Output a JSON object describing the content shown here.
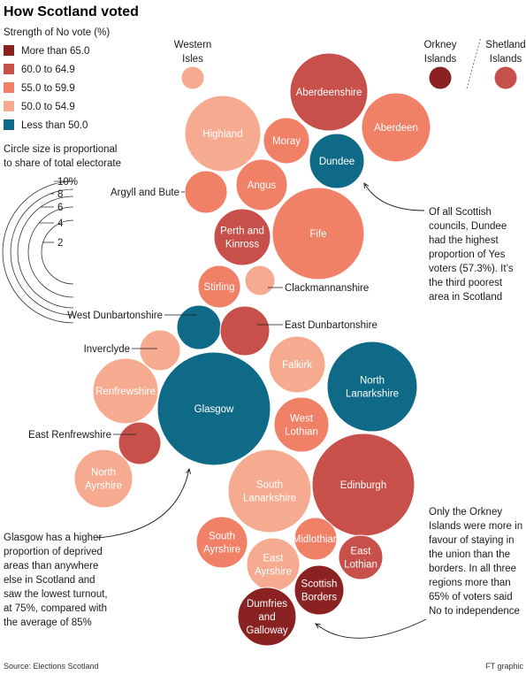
{
  "chart_data": {
    "type": "bubble",
    "title": "How Scotland voted",
    "legend": {
      "title": "Strength of No vote (%)",
      "entries": [
        {
          "label": "More than 65.0",
          "color": "#8b2222"
        },
        {
          "label": "60.0 to 64.9",
          "color": "#c8504a"
        },
        {
          "label": "55.0 to 59.9",
          "color": "#f08066"
        },
        {
          "label": "50.0 to 54.9",
          "color": "#f6ab90"
        },
        {
          "label": "Less than 50.0",
          "color": "#0f6a88"
        }
      ],
      "size_caption": [
        "Circle size is proportional",
        "to share of total electorate"
      ],
      "size_ticks": [
        "10%",
        "8",
        "6",
        "4",
        "2"
      ]
    },
    "councils": [
      {
        "name": "Western Isles",
        "band": "50.0 to 54.9",
        "label_outside": true
      },
      {
        "name": "Aberdeenshire",
        "band": "60.0 to 64.9"
      },
      {
        "name": "Orkney Islands",
        "band": "More than 65.0",
        "label_outside": true
      },
      {
        "name": "Shetland Islands",
        "band": "60.0 to 64.9",
        "label_outside": true
      },
      {
        "name": "Aberdeen",
        "band": "55.0 to 59.9"
      },
      {
        "name": "Highland",
        "band": "50.0 to 54.9"
      },
      {
        "name": "Moray",
        "band": "55.0 to 59.9"
      },
      {
        "name": "Dundee",
        "band": "Less than 50.0"
      },
      {
        "name": "Argyll and Bute",
        "band": "55.0 to 59.9",
        "label_outside": true
      },
      {
        "name": "Angus",
        "band": "55.0 to 59.9"
      },
      {
        "name": "Perth and Kinross",
        "band": "60.0 to 64.9"
      },
      {
        "name": "Fife",
        "band": "55.0 to 59.9"
      },
      {
        "name": "Stirling",
        "band": "55.0 to 59.9"
      },
      {
        "name": "Clackmannanshire",
        "band": "50.0 to 54.9",
        "label_outside": true
      },
      {
        "name": "West Dunbartonshire",
        "band": "Less than 50.0",
        "label_outside": true
      },
      {
        "name": "East Dunbartonshire",
        "band": "60.0 to 64.9",
        "label_outside": true
      },
      {
        "name": "Inverclyde",
        "band": "50.0 to 54.9",
        "label_outside": true
      },
      {
        "name": "Renfrewshire",
        "band": "50.0 to 54.9"
      },
      {
        "name": "Glasgow",
        "band": "Less than 50.0"
      },
      {
        "name": "Falkirk",
        "band": "50.0 to 54.9"
      },
      {
        "name": "North Lanarkshire",
        "band": "Less than 50.0"
      },
      {
        "name": "West Lothian",
        "band": "55.0 to 59.9"
      },
      {
        "name": "East Renfrewshire",
        "band": "60.0 to 64.9",
        "label_outside": true
      },
      {
        "name": "North Ayrshire",
        "band": "50.0 to 54.9"
      },
      {
        "name": "South Lanarkshire",
        "band": "50.0 to 54.9"
      },
      {
        "name": "Edinburgh",
        "band": "60.0 to 64.9"
      },
      {
        "name": "South Ayrshire",
        "band": "55.0 to 59.9"
      },
      {
        "name": "East Ayrshire",
        "band": "50.0 to 54.9"
      },
      {
        "name": "Midlothian",
        "band": "55.0 to 59.9"
      },
      {
        "name": "East Lothian",
        "band": "60.0 to 64.9"
      },
      {
        "name": "Scottish Borders",
        "band": "More than 65.0"
      },
      {
        "name": "Dumfries and Galloway",
        "band": "More than 65.0"
      }
    ],
    "annotations": {
      "dundee": [
        "Of all Scottish",
        "councils, Dundee",
        "had the highest",
        "proportion of Yes",
        "voters (57.3%). It’s",
        "the third poorest",
        "area in Scotland"
      ],
      "glasgow": [
        "Glasgow has a higher",
        "proportion of deprived",
        "areas than anywhere",
        "else in Scotland and",
        "saw the lowest turnout,",
        "at 75%, compared with",
        "the average of 85%"
      ],
      "orkney": [
        "Only the Orkney",
        "Islands were more in",
        "favour of staying in",
        "the union than the",
        "borders. In all three",
        "regions more than",
        "65% of voters said",
        "No to independence"
      ]
    },
    "source": "Source: Elections Scotland",
    "credit": "FT graphic"
  }
}
